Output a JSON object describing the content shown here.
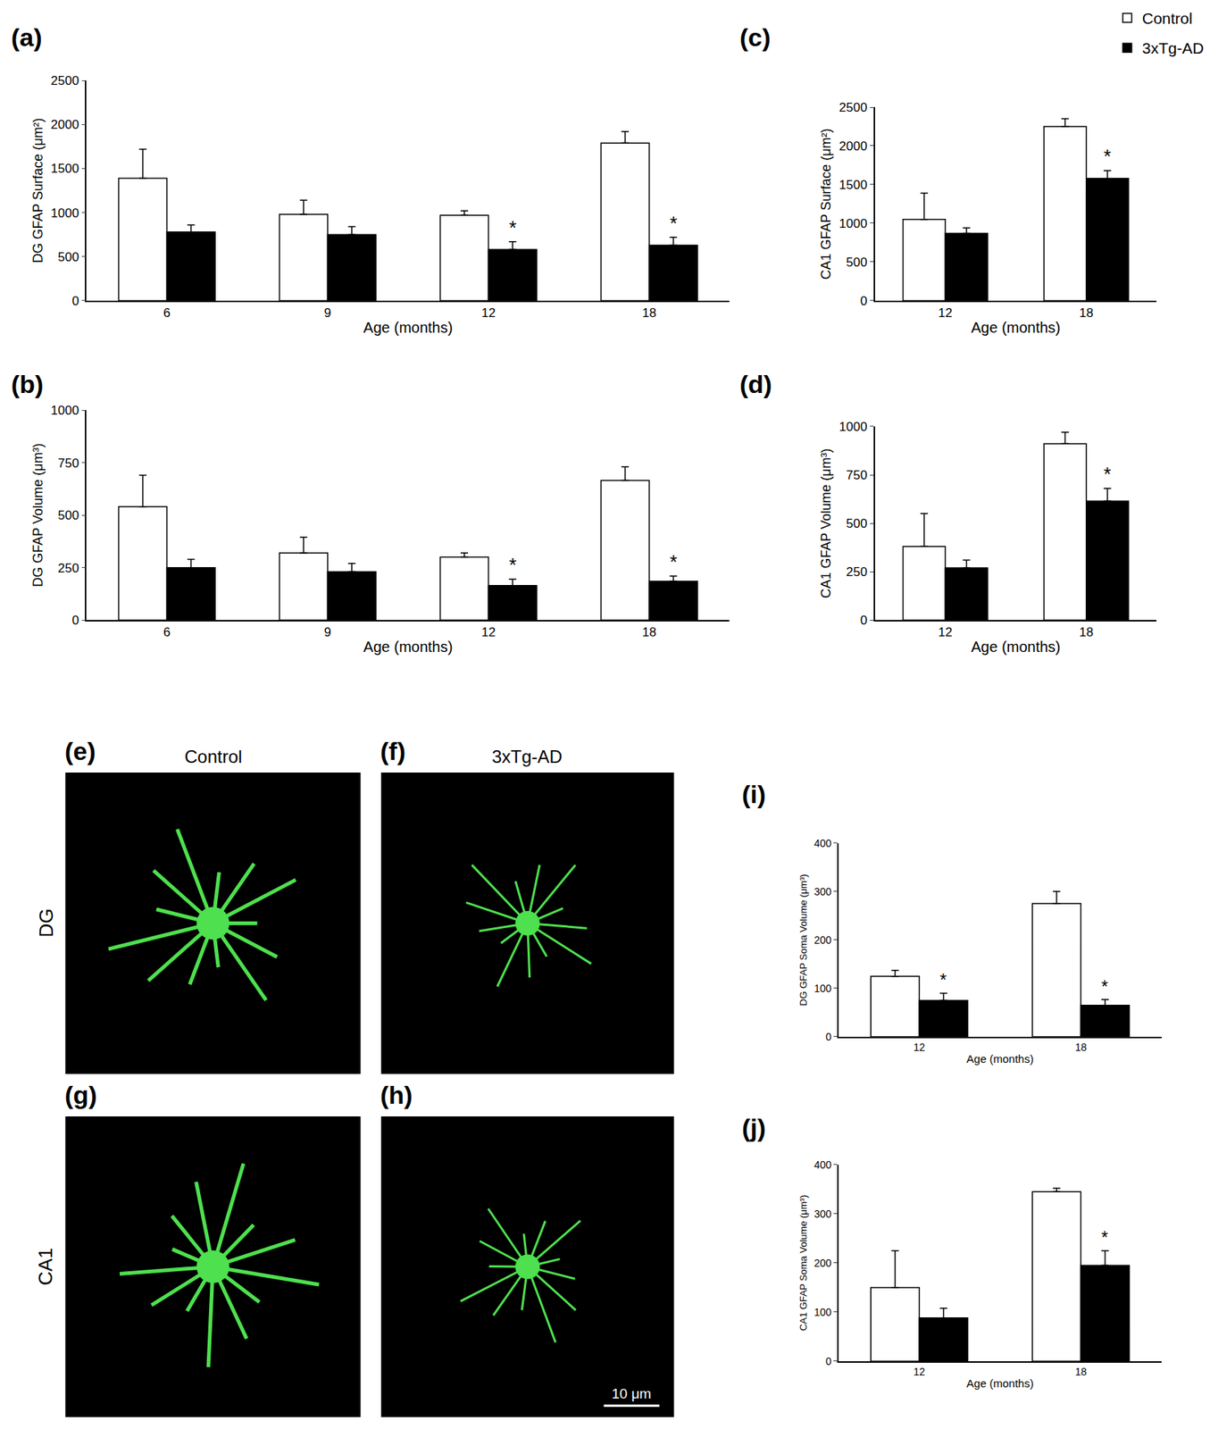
{
  "chart_data": [
    {
      "type": "bar",
      "title": "(a)",
      "x_label": "Age (months)",
      "y_label": "DG GFAP Surface (μm²)",
      "categories": [
        "6",
        "9",
        "12",
        "18"
      ],
      "ylim": [
        0,
        2500
      ],
      "yticks": [
        0,
        500,
        1000,
        1500,
        2000,
        2500
      ],
      "grid": false,
      "legend": "top right",
      "series": [
        {
          "name": "Control",
          "color": "#ffffff",
          "values": [
            1390,
            980,
            970,
            1790
          ],
          "errors": [
            330,
            160,
            50,
            130
          ]
        },
        {
          "name": "3xTg-AD",
          "color": "#000000",
          "values": [
            780,
            750,
            580,
            630
          ],
          "errors": [
            80,
            90,
            90,
            90
          ]
        }
      ],
      "annotations": [
        {
          "text": "*",
          "category": "12",
          "series": "3xTg-AD"
        },
        {
          "text": "*",
          "category": "18",
          "series": "3xTg-AD"
        }
      ]
    },
    {
      "type": "bar",
      "title": "(b)",
      "x_label": "Age (months)",
      "y_label": "DG GFAP Volume (μm³)",
      "categories": [
        "6",
        "9",
        "12",
        "18"
      ],
      "ylim": [
        0,
        1000
      ],
      "yticks": [
        0,
        250,
        500,
        750,
        1000
      ],
      "grid": false,
      "series": [
        {
          "name": "Control",
          "color": "#ffffff",
          "values": [
            540,
            320,
            300,
            665
          ],
          "errors": [
            150,
            75,
            20,
            65
          ]
        },
        {
          "name": "3xTg-AD",
          "color": "#000000",
          "values": [
            250,
            230,
            165,
            185
          ],
          "errors": [
            40,
            40,
            30,
            25
          ]
        }
      ],
      "annotations": [
        {
          "text": "*",
          "category": "12",
          "series": "3xTg-AD"
        },
        {
          "text": "*",
          "category": "18",
          "series": "3xTg-AD"
        }
      ]
    },
    {
      "type": "bar",
      "title": "(c)",
      "x_label": "Age (months)",
      "y_label": "CA1 GFAP Surface (μm²)",
      "categories": [
        "12",
        "18"
      ],
      "ylim": [
        0,
        2500
      ],
      "yticks": [
        0,
        500,
        1000,
        1500,
        2000,
        2500
      ],
      "grid": false,
      "series": [
        {
          "name": "Control",
          "color": "#ffffff",
          "values": [
            1050,
            2250
          ],
          "errors": [
            340,
            100
          ]
        },
        {
          "name": "3xTg-AD",
          "color": "#000000",
          "values": [
            870,
            1580
          ],
          "errors": [
            70,
            100
          ]
        }
      ],
      "annotations": [
        {
          "text": "*",
          "category": "18",
          "series": "3xTg-AD"
        }
      ]
    },
    {
      "type": "bar",
      "title": "(d)",
      "x_label": "Age (months)",
      "y_label": "CA1 GFAP Volume (μm³)",
      "categories": [
        "12",
        "18"
      ],
      "ylim": [
        0,
        1000
      ],
      "yticks": [
        0,
        250,
        500,
        750,
        1000
      ],
      "grid": false,
      "series": [
        {
          "name": "Control",
          "color": "#ffffff",
          "values": [
            380,
            910
          ],
          "errors": [
            170,
            60
          ]
        },
        {
          "name": "3xTg-AD",
          "color": "#000000",
          "values": [
            270,
            615
          ],
          "errors": [
            40,
            65
          ]
        }
      ],
      "annotations": [
        {
          "text": "*",
          "category": "18",
          "series": "3xTg-AD"
        }
      ]
    },
    {
      "type": "bar",
      "title": "(i)",
      "x_label": "Age (months)",
      "y_label": "DG GFAP Soma Volume (μm³)",
      "categories": [
        "12",
        "18"
      ],
      "ylim": [
        0,
        400
      ],
      "yticks": [
        0,
        100,
        200,
        300,
        400
      ],
      "grid": false,
      "series": [
        {
          "name": "Control",
          "color": "#ffffff",
          "values": [
            125,
            275
          ],
          "errors": [
            12,
            25
          ]
        },
        {
          "name": "3xTg-AD",
          "color": "#000000",
          "values": [
            75,
            65
          ],
          "errors": [
            15,
            12
          ]
        }
      ],
      "annotations": [
        {
          "text": "*",
          "category": "12",
          "series": "3xTg-AD"
        },
        {
          "text": "*",
          "category": "18",
          "series": "3xTg-AD"
        }
      ]
    },
    {
      "type": "bar",
      "title": "(j)",
      "x_label": "Age (months)",
      "y_label": "CA1 GFAP Soma Volume (μm³)",
      "categories": [
        "12",
        "18"
      ],
      "ylim": [
        0,
        400
      ],
      "yticks": [
        0,
        100,
        200,
        300,
        400
      ],
      "grid": false,
      "series": [
        {
          "name": "Control",
          "color": "#ffffff",
          "values": [
            150,
            345
          ],
          "errors": [
            75,
            7
          ]
        },
        {
          "name": "3xTg-AD",
          "color": "#000000",
          "values": [
            88,
            195
          ],
          "errors": [
            20,
            30
          ]
        }
      ],
      "annotations": [
        {
          "text": "*",
          "category": "18",
          "series": "3xTg-AD"
        }
      ]
    }
  ],
  "image_panels": {
    "labels": [
      "(e)",
      "(f)",
      "(g)",
      "(h)"
    ],
    "columns": [
      "Control",
      "3xTg-AD"
    ],
    "rows": [
      "DG",
      "CA1"
    ],
    "scale_bar": "10 μm"
  }
}
